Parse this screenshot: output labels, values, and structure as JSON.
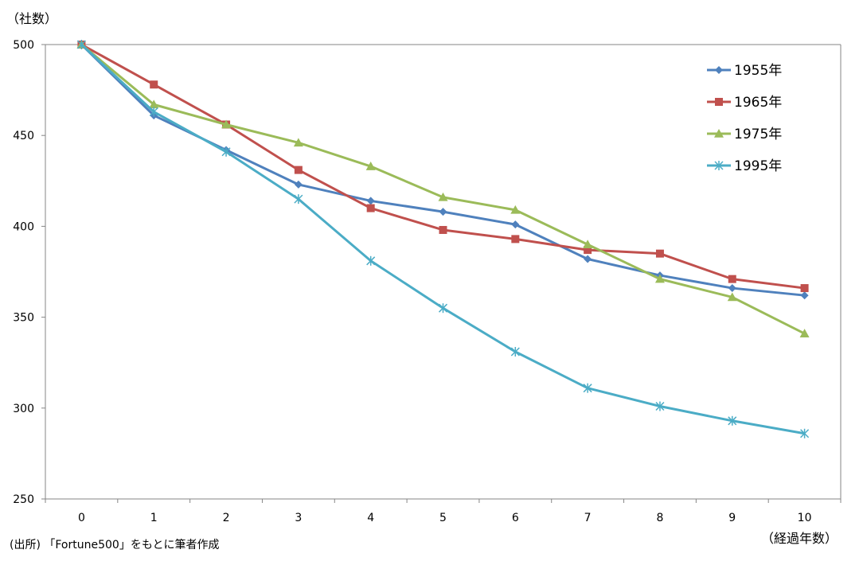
{
  "chart_data": {
    "type": "line",
    "ylabel": "（社数）",
    "xlabel": "（経過年数）",
    "source": "(出所) 「Fortune500」をもとに筆者作成",
    "x": [
      0,
      1,
      2,
      3,
      4,
      5,
      6,
      7,
      8,
      9,
      10
    ],
    "ylim": [
      250,
      500
    ],
    "yticks": [
      250,
      300,
      350,
      400,
      450,
      500
    ],
    "grid": false,
    "legend_position": "top-right",
    "series": [
      {
        "name": "1955年",
        "color": "#4F81BD",
        "marker": "diamond",
        "values": [
          500,
          461,
          442,
          423,
          414,
          408,
          401,
          382,
          373,
          366,
          362
        ]
      },
      {
        "name": "1965年",
        "color": "#C0504D",
        "marker": "square",
        "values": [
          500,
          478,
          456,
          431,
          410,
          398,
          393,
          387,
          385,
          371,
          366
        ]
      },
      {
        "name": "1975年",
        "color": "#9BBB59",
        "marker": "triangle",
        "values": [
          500,
          467,
          456,
          446,
          433,
          416,
          409,
          390,
          371,
          361,
          341
        ]
      },
      {
        "name": "1995年",
        "color": "#4BACC6",
        "marker": "star",
        "values": [
          500,
          463,
          441,
          415,
          381,
          355,
          331,
          311,
          301,
          293,
          286
        ]
      }
    ]
  }
}
